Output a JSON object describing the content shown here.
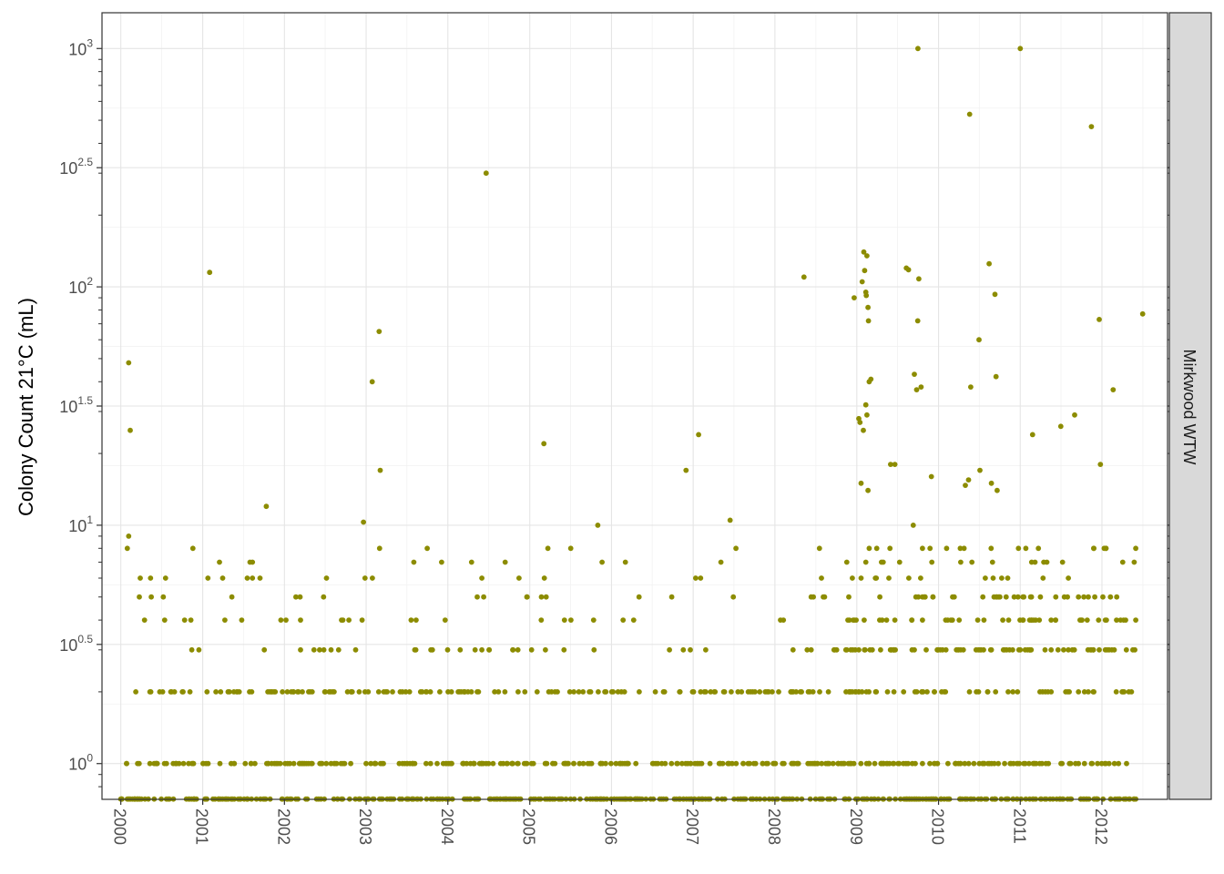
{
  "chart_data": {
    "type": "scatter",
    "title": "",
    "xlabel": "",
    "ylabel": "Colony Count 21°C (mL)",
    "facet_label": "Mirkwood WTW",
    "x_scale": "date",
    "y_scale": "log10",
    "xlim": [
      "1999-10-09",
      "2012-10-20"
    ],
    "ylim_log10": [
      -0.15,
      3.15
    ],
    "x_ticks": [
      "2000",
      "2001",
      "2002",
      "2003",
      "2004",
      "2005",
      "2006",
      "2007",
      "2008",
      "2009",
      "2010",
      "2011",
      "2012"
    ],
    "y_ticks": [
      {
        "base": "10",
        "exp": "0",
        "value": 1
      },
      {
        "base": "10",
        "exp": "0.5",
        "value": 3.16
      },
      {
        "base": "10",
        "exp": "1",
        "value": 10
      },
      {
        "base": "10",
        "exp": "1.5",
        "value": 31.6
      },
      {
        "base": "10",
        "exp": "2",
        "value": 100
      },
      {
        "base": "10",
        "exp": "2.5",
        "value": 316
      },
      {
        "base": "10",
        "exp": "3",
        "value": 1000
      }
    ],
    "grid": true,
    "point_color": "#8c8c00",
    "series": [
      {
        "points": [
          [
            "2000-02-05",
            48
          ],
          [
            "2000-02-12",
            25
          ],
          [
            "2000-01-30",
            8
          ],
          [
            "2000-02-05",
            9
          ],
          [
            "2001-02-01",
            115
          ],
          [
            "2001-10-12",
            12
          ],
          [
            "2002-12-20",
            10.3
          ],
          [
            "2003-01-28",
            40
          ],
          [
            "2003-02-28",
            65
          ],
          [
            "2003-03-05",
            17
          ],
          [
            "2003-10-01",
            8
          ],
          [
            "2004-06-20",
            300
          ],
          [
            "2005-03-05",
            22
          ],
          [
            "2005-11-01",
            10
          ],
          [
            "2006-11-30",
            17
          ],
          [
            "2007-01-25",
            24
          ],
          [
            "2007-06-15",
            10.5
          ],
          [
            "2008-05-10",
            110
          ],
          [
            "2008-12-20",
            90
          ],
          [
            "2009-01-10",
            28
          ],
          [
            "2009-01-15",
            27
          ],
          [
            "2009-01-20",
            15
          ],
          [
            "2009-01-25",
            105
          ],
          [
            "2009-02-01",
            140
          ],
          [
            "2009-02-05",
            117
          ],
          [
            "2009-02-10",
            95
          ],
          [
            "2009-02-12",
            92
          ],
          [
            "2009-02-15",
            135
          ],
          [
            "2009-02-20",
            82
          ],
          [
            "2009-02-22",
            72
          ],
          [
            "2009-02-25",
            40
          ],
          [
            "2009-03-05",
            41
          ],
          [
            "2009-02-10",
            32
          ],
          [
            "2009-02-15",
            29
          ],
          [
            "2009-02-20",
            14
          ],
          [
            "2009-01-30",
            25
          ],
          [
            "2009-06-01",
            18
          ],
          [
            "2009-06-20",
            18
          ],
          [
            "2009-08-10",
            120
          ],
          [
            "2009-08-20",
            118
          ],
          [
            "2009-09-10",
            10
          ],
          [
            "2009-09-15",
            43
          ],
          [
            "2009-09-25",
            37
          ],
          [
            "2009-09-30",
            72
          ],
          [
            "2009-10-01",
            1000
          ],
          [
            "2009-10-05",
            108
          ],
          [
            "2009-10-15",
            38
          ],
          [
            "2009-11-30",
            16
          ],
          [
            "2010-05-20",
            530
          ],
          [
            "2010-05-25",
            38
          ],
          [
            "2010-05-01",
            14.7
          ],
          [
            "2010-05-15",
            15.5
          ],
          [
            "2010-07-01",
            60
          ],
          [
            "2010-07-05",
            17
          ],
          [
            "2010-08-15",
            125
          ],
          [
            "2010-08-25",
            15
          ],
          [
            "2010-09-10",
            93
          ],
          [
            "2010-09-15",
            42
          ],
          [
            "2010-09-20",
            14
          ],
          [
            "2011-01-01",
            1000
          ],
          [
            "2011-02-25",
            24
          ],
          [
            "2011-07-01",
            26
          ],
          [
            "2011-09-01",
            29
          ],
          [
            "2011-11-15",
            470
          ],
          [
            "2011-12-20",
            73
          ],
          [
            "2011-12-25",
            18
          ],
          [
            "2012-02-20",
            37
          ],
          [
            "2012-07-01",
            77
          ]
        ]
      }
    ]
  }
}
